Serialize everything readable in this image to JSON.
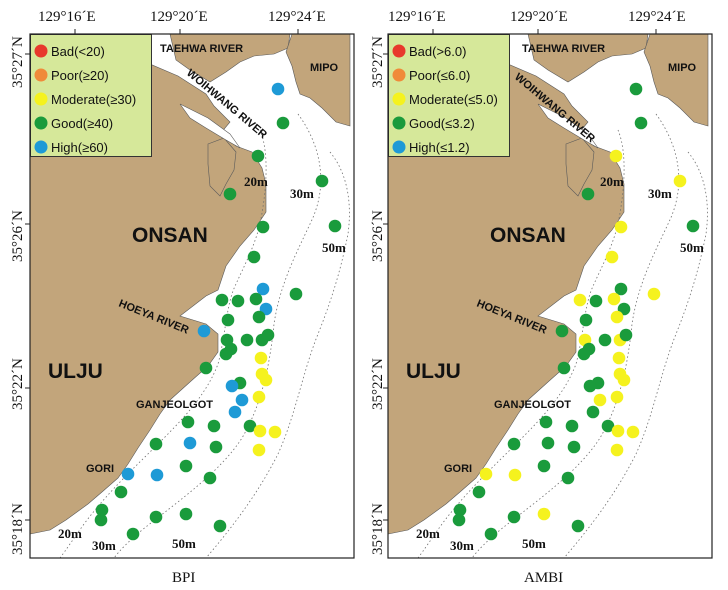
{
  "colors": {
    "land": "#c2a57b",
    "legend_bg": "#d6e89a",
    "sea": "#ffffff",
    "bad": "#e8392c",
    "poor": "#f08a3a",
    "moderate": "#f5f21e",
    "good": "#1a9b3c",
    "high": "#1e9ad6"
  },
  "panels": [
    {
      "title": "BPI",
      "legend": [
        {
          "label": "Bad(<20)",
          "class": "bad"
        },
        {
          "label": "Poor(≥20)",
          "class": "poor"
        },
        {
          "label": "Moderate(≥30)",
          "class": "moderate"
        },
        {
          "label": "Good(≥40)",
          "class": "good"
        },
        {
          "label": "High(≥60)",
          "class": "high"
        }
      ],
      "station_classes": [
        "high",
        "good",
        "good",
        "good",
        "good",
        "good",
        "good",
        "good",
        "high",
        "good",
        "good",
        "good",
        "good",
        "high",
        "good",
        "good",
        "good",
        "good",
        "good",
        "high",
        "good",
        "good",
        "good",
        "good",
        "moderate",
        "moderate",
        "good",
        "moderate",
        "high",
        "high",
        "moderate",
        "high",
        "good",
        "good",
        "good",
        "moderate",
        "moderate",
        "moderate",
        "good",
        "high",
        "good",
        "good",
        "high",
        "high",
        "good",
        "good",
        "good",
        "good",
        "good",
        "good",
        "good",
        "good"
      ]
    },
    {
      "title": "AMBI",
      "legend": [
        {
          "label": "Bad(>6.0)",
          "class": "bad"
        },
        {
          "label": "Poor(≤6.0)",
          "class": "poor"
        },
        {
          "label": "Moderate(≤5.0)",
          "class": "moderate"
        },
        {
          "label": "Good(≤3.2)",
          "class": "good"
        },
        {
          "label": "High(≤1.2)",
          "class": "high"
        }
      ],
      "station_classes": [
        "good",
        "good",
        "moderate",
        "moderate",
        "good",
        "moderate",
        "good",
        "moderate",
        "good",
        "moderate",
        "moderate",
        "good",
        "moderate",
        "good",
        "good",
        "moderate",
        "moderate",
        "good",
        "moderate",
        "good",
        "good",
        "good",
        "good",
        "good",
        "moderate",
        "moderate",
        "good",
        "moderate",
        "good",
        "moderate",
        "moderate",
        "good",
        "good",
        "good",
        "good",
        "moderate",
        "moderate",
        "moderate",
        "good",
        "good",
        "good",
        "good",
        "moderate",
        "moderate",
        "good",
        "good",
        "good",
        "good",
        "moderate",
        "good",
        "good",
        "good"
      ]
    }
  ],
  "labels": {
    "lon1": "129°16´E",
    "lon2": "129°20´E",
    "lon3": "129°24´E",
    "lat1": "35°27´N",
    "lat2": "35°26´N",
    "lat3": "35°22´N",
    "lat4": "35°18´N",
    "taehwa": "TAEHWA RIVER",
    "mipo": "MIPO",
    "woihwang": "WOIHWANG RIVER",
    "onsan": "ONSAN",
    "hoeya": "HOEYA RIVER",
    "ulju": "ULJU",
    "ganjeolgot": "GANJEOLGOT",
    "gori": "GORI",
    "d20top": "20m",
    "d30top": "30m",
    "d50top": "50m",
    "d20bot": "20m",
    "d30bot": "30m",
    "d50bot": "50m"
  }
}
